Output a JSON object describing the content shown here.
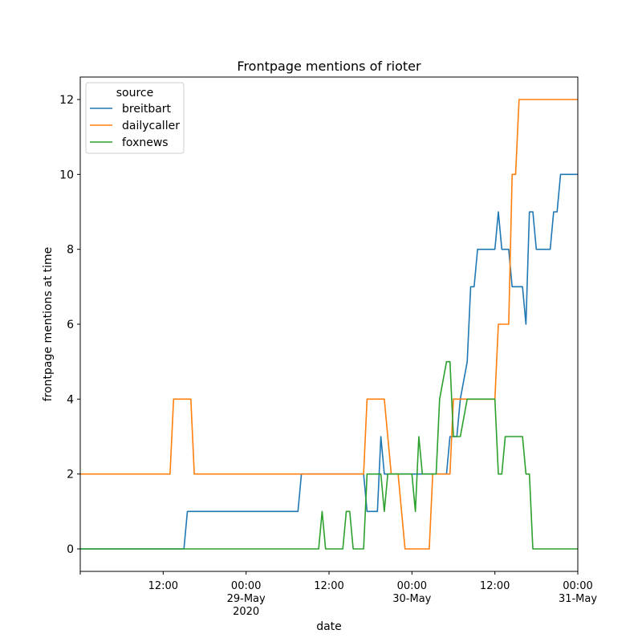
{
  "chart_data": {
    "type": "line",
    "title": "Frontpage mentions of rioter",
    "xlabel": "date",
    "ylabel": "frontpage mentions at time",
    "x_unit": "hours",
    "xlim": [
      -12,
      60
    ],
    "ylim": [
      -0.6,
      12.6
    ],
    "yticks": [
      0,
      2,
      4,
      6,
      8,
      10,
      12
    ],
    "xticks": [
      {
        "x": -12,
        "lines": [
          ""
        ]
      },
      {
        "x": 0,
        "lines": [
          "12:00"
        ]
      },
      {
        "x": 12,
        "lines": [
          "00:00",
          "29-May",
          "2020"
        ]
      },
      {
        "x": 24,
        "lines": [
          "12:00"
        ]
      },
      {
        "x": 36,
        "lines": [
          "00:00",
          "30-May"
        ]
      },
      {
        "x": 48,
        "lines": [
          "12:00"
        ]
      },
      {
        "x": 60,
        "lines": [
          "00:00",
          "31-May"
        ]
      }
    ],
    "legend": {
      "title": "source",
      "position": "top-left"
    },
    "series": [
      {
        "name": "breitbart",
        "color": "#1f77b4",
        "points": [
          [
            -12,
            0
          ],
          [
            3,
            0
          ],
          [
            3.5,
            1
          ],
          [
            19.5,
            1
          ],
          [
            20,
            2
          ],
          [
            29,
            2
          ],
          [
            29.5,
            1
          ],
          [
            31,
            1
          ],
          [
            31.5,
            3
          ],
          [
            32,
            2
          ],
          [
            41,
            2
          ],
          [
            41.5,
            3
          ],
          [
            42,
            3
          ],
          [
            42.5,
            3
          ],
          [
            43,
            4
          ],
          [
            44,
            5
          ],
          [
            44.5,
            7
          ],
          [
            45,
            7
          ],
          [
            45.5,
            8
          ],
          [
            48,
            8
          ],
          [
            48.5,
            9
          ],
          [
            49,
            8
          ],
          [
            50,
            8
          ],
          [
            50.5,
            7
          ],
          [
            52,
            7
          ],
          [
            52.5,
            6
          ],
          [
            53,
            9
          ],
          [
            53.5,
            9
          ],
          [
            54,
            8
          ],
          [
            56,
            8
          ],
          [
            56.5,
            9
          ],
          [
            57,
            9
          ],
          [
            57.5,
            10
          ],
          [
            60,
            10
          ]
        ]
      },
      {
        "name": "dailycaller",
        "color": "#ff7f0e",
        "points": [
          [
            -12,
            2
          ],
          [
            1,
            2
          ],
          [
            1.5,
            4
          ],
          [
            2.5,
            4
          ],
          [
            3,
            4
          ],
          [
            4,
            4
          ],
          [
            4.5,
            2
          ],
          [
            18.5,
            2
          ],
          [
            19,
            2
          ],
          [
            29,
            2
          ],
          [
            29.5,
            4
          ],
          [
            32,
            4
          ],
          [
            33,
            2
          ],
          [
            34,
            2
          ],
          [
            35,
            0
          ],
          [
            38.5,
            0
          ],
          [
            39,
            2
          ],
          [
            41.5,
            2
          ],
          [
            42,
            4
          ],
          [
            47,
            4
          ],
          [
            48,
            4
          ],
          [
            48.5,
            6
          ],
          [
            50,
            6
          ],
          [
            50.5,
            10
          ],
          [
            51,
            10
          ],
          [
            51.5,
            12
          ],
          [
            60,
            12
          ]
        ]
      },
      {
        "name": "foxnews",
        "color": "#2ca02c",
        "points": [
          [
            -12,
            0
          ],
          [
            22.5,
            0
          ],
          [
            23,
            1
          ],
          [
            23.5,
            0
          ],
          [
            26,
            0
          ],
          [
            26.5,
            1
          ],
          [
            27,
            1
          ],
          [
            27.5,
            0
          ],
          [
            29,
            0
          ],
          [
            29.5,
            2
          ],
          [
            30,
            2
          ],
          [
            31.5,
            2
          ],
          [
            32,
            1
          ],
          [
            32.5,
            2
          ],
          [
            36,
            2
          ],
          [
            36.5,
            1
          ],
          [
            37,
            3
          ],
          [
            37.5,
            2
          ],
          [
            38,
            2
          ],
          [
            39.5,
            2
          ],
          [
            40,
            4
          ],
          [
            41,
            5
          ],
          [
            41.5,
            5
          ],
          [
            42,
            3
          ],
          [
            42.5,
            3
          ],
          [
            43,
            3
          ],
          [
            44,
            4
          ],
          [
            48,
            4
          ],
          [
            48.5,
            2
          ],
          [
            49,
            2
          ],
          [
            49.5,
            3
          ],
          [
            52,
            3
          ],
          [
            52.5,
            2
          ],
          [
            53,
            2
          ],
          [
            53.5,
            0
          ],
          [
            60,
            0
          ]
        ]
      }
    ]
  }
}
